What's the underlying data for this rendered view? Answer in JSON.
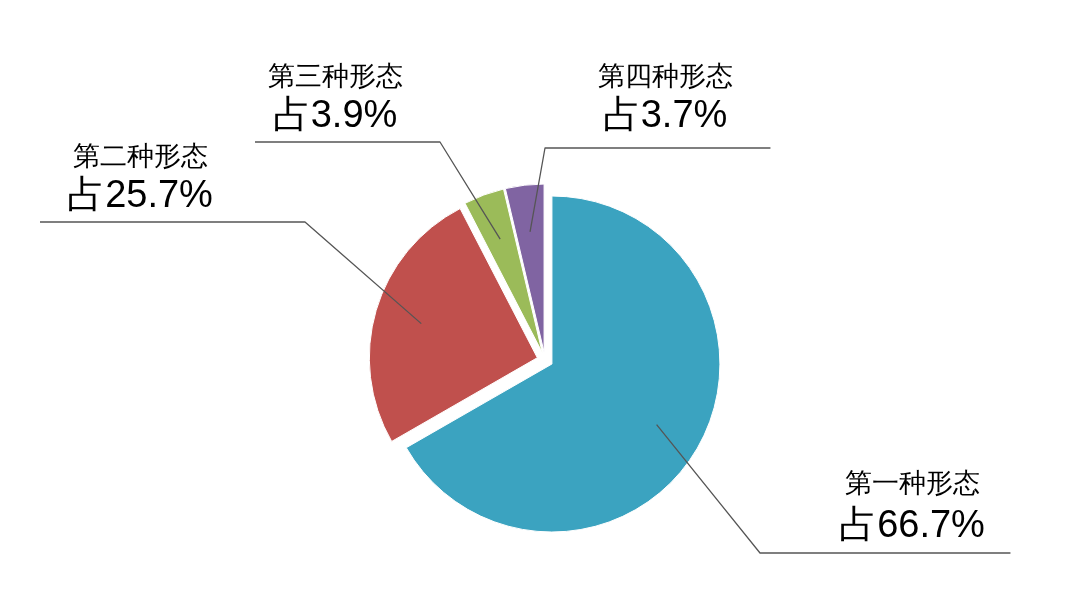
{
  "chart_data": {
    "type": "pie",
    "categories": [
      "第一种形态",
      "第二种形态",
      "第三种形态",
      "第四种形态"
    ],
    "values": [
      66.7,
      25.7,
      3.9,
      3.7
    ],
    "colors": [
      "#3ba3c0",
      "#c0504d",
      "#9bbb59",
      "#8064a2"
    ],
    "value_labels": [
      "占66.7%",
      "占25.7%",
      "占3.9%",
      "占3.7%"
    ]
  }
}
